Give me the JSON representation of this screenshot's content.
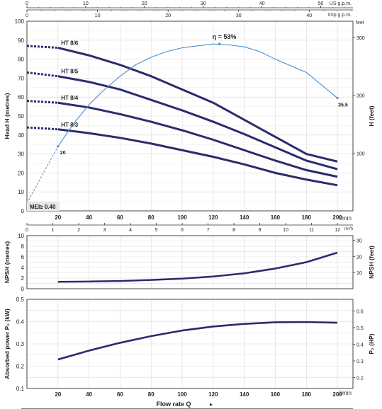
{
  "colors": {
    "curve": "#2b2b6e",
    "efficiency": "#4a8fd0",
    "grid": "#d9d9d9",
    "axis": "#333333",
    "badge": "#e6e6ea"
  },
  "top_scales": {
    "us_label": "US g.p.m.",
    "imp_label": "Imp g.p.m.",
    "us_ticks": [
      "0",
      "10",
      "20",
      "30",
      "40",
      "50"
    ],
    "imp_ticks": [
      "0",
      "10",
      "20",
      "30",
      "40"
    ]
  },
  "feet_unit": "feet",
  "m3h_unit": "m³/h",
  "flow_unit": "l/min",
  "xlabel": "Flow rate  Q",
  "mei_label": "MEI≥ 0.40",
  "m3h_ticks": [
    "0",
    "1",
    "2",
    "3",
    "4",
    "5",
    "6",
    "7",
    "8",
    "9",
    "10",
    "11",
    "12"
  ],
  "chart_data": [
    {
      "type": "line",
      "name_key": "head",
      "ylabel": "Head  H  (metres)",
      "ylabel2": "H (feet)",
      "xlim": [
        0,
        210
      ],
      "ylim": [
        0,
        100
      ],
      "x_ticks": [
        0,
        20,
        40,
        60,
        80,
        100,
        120,
        140,
        160,
        180,
        200
      ],
      "y_ticks": [
        0,
        10,
        20,
        30,
        40,
        50,
        60,
        70,
        80,
        90,
        100
      ],
      "y2_ticks": [
        "100",
        "200",
        "300"
      ],
      "series": [
        {
          "name": "HT 8/6",
          "x": [
            0,
            20,
            40,
            60,
            80,
            100,
            120,
            140,
            160,
            180,
            200
          ],
          "y": [
            87,
            86,
            82,
            77,
            71,
            64,
            57,
            48,
            39,
            30,
            26
          ]
        },
        {
          "name": "HT 8/5",
          "x": [
            0,
            20,
            40,
            60,
            80,
            100,
            120,
            140,
            160,
            180,
            200
          ],
          "y": [
            73,
            71,
            68,
            64,
            58.5,
            53,
            47,
            40.5,
            33.5,
            26.5,
            22
          ]
        },
        {
          "name": "HT 8/4",
          "x": [
            0,
            20,
            40,
            60,
            80,
            100,
            120,
            140,
            160,
            180,
            200
          ],
          "y": [
            58,
            57,
            54.5,
            51,
            47,
            42.5,
            37.5,
            32,
            26.5,
            21.5,
            18
          ]
        },
        {
          "name": "HT 8/3",
          "x": [
            0,
            20,
            40,
            60,
            80,
            100,
            120,
            140,
            160,
            180,
            200
          ],
          "y": [
            44,
            43,
            41,
            38.5,
            35.5,
            32,
            28.5,
            24.5,
            20,
            16.5,
            13.5
          ]
        }
      ],
      "efficiency": {
        "label": "η = 53%",
        "start_label": "20",
        "end_label": "35.5",
        "x": [
          0,
          10,
          20,
          30,
          40,
          50,
          60,
          70,
          80,
          90,
          100,
          110,
          120,
          130,
          140,
          150,
          160,
          180,
          200
        ],
        "y": [
          4,
          19,
          34,
          46,
          56,
          64,
          71,
          77,
          81,
          84,
          86,
          87,
          88,
          87.5,
          86.5,
          84,
          80,
          73,
          59.5
        ],
        "peak": [
          124,
          88
        ]
      }
    },
    {
      "type": "line",
      "name_key": "npsh",
      "ylabel": "NPSH  (metres)",
      "ylabel2": "NPSH  (feet)",
      "xlim": [
        0,
        210
      ],
      "ylim": [
        0,
        10
      ],
      "x_ticks": [
        0,
        20,
        40,
        60,
        80,
        100,
        120,
        140,
        160,
        180,
        200
      ],
      "y_ticks": [
        0,
        2,
        4,
        6,
        8,
        10
      ],
      "y_ticks_minor": [
        1,
        3,
        5,
        7,
        9
      ],
      "y2_ticks": [
        "10",
        "20",
        "30"
      ],
      "series": [
        {
          "name": "",
          "x": [
            20,
            40,
            60,
            80,
            100,
            120,
            140,
            160,
            180,
            200
          ],
          "y": [
            1.3,
            1.35,
            1.45,
            1.65,
            1.9,
            2.3,
            2.9,
            3.8,
            5.0,
            6.8
          ]
        }
      ]
    },
    {
      "type": "line",
      "name_key": "power",
      "ylabel": "Absorbed power  P₂  (kW)",
      "ylabel2": "P₂ (HP)",
      "xlim": [
        0,
        210
      ],
      "ylim": [
        0.1,
        0.5
      ],
      "x_ticks": [
        0,
        20,
        40,
        60,
        80,
        100,
        120,
        140,
        160,
        180,
        200
      ],
      "x_tick_labels": [
        "0",
        "20",
        "40",
        "60",
        "80",
        "100",
        "120",
        "140",
        "160",
        "180",
        "200"
      ],
      "y_ticks": [
        0.1,
        0.2,
        0.3,
        0.4,
        0.5
      ],
      "y_ticks_minor": [
        0.15,
        0.25,
        0.35,
        0.45
      ],
      "y2_ticks": [
        "0.2",
        "0.3",
        "0.4",
        "0.5",
        "0.6"
      ],
      "series": [
        {
          "name": "",
          "x": [
            20,
            40,
            60,
            80,
            100,
            120,
            140,
            160,
            180,
            200
          ],
          "y": [
            0.23,
            0.27,
            0.305,
            0.335,
            0.36,
            0.378,
            0.39,
            0.397,
            0.398,
            0.395
          ]
        }
      ]
    }
  ]
}
